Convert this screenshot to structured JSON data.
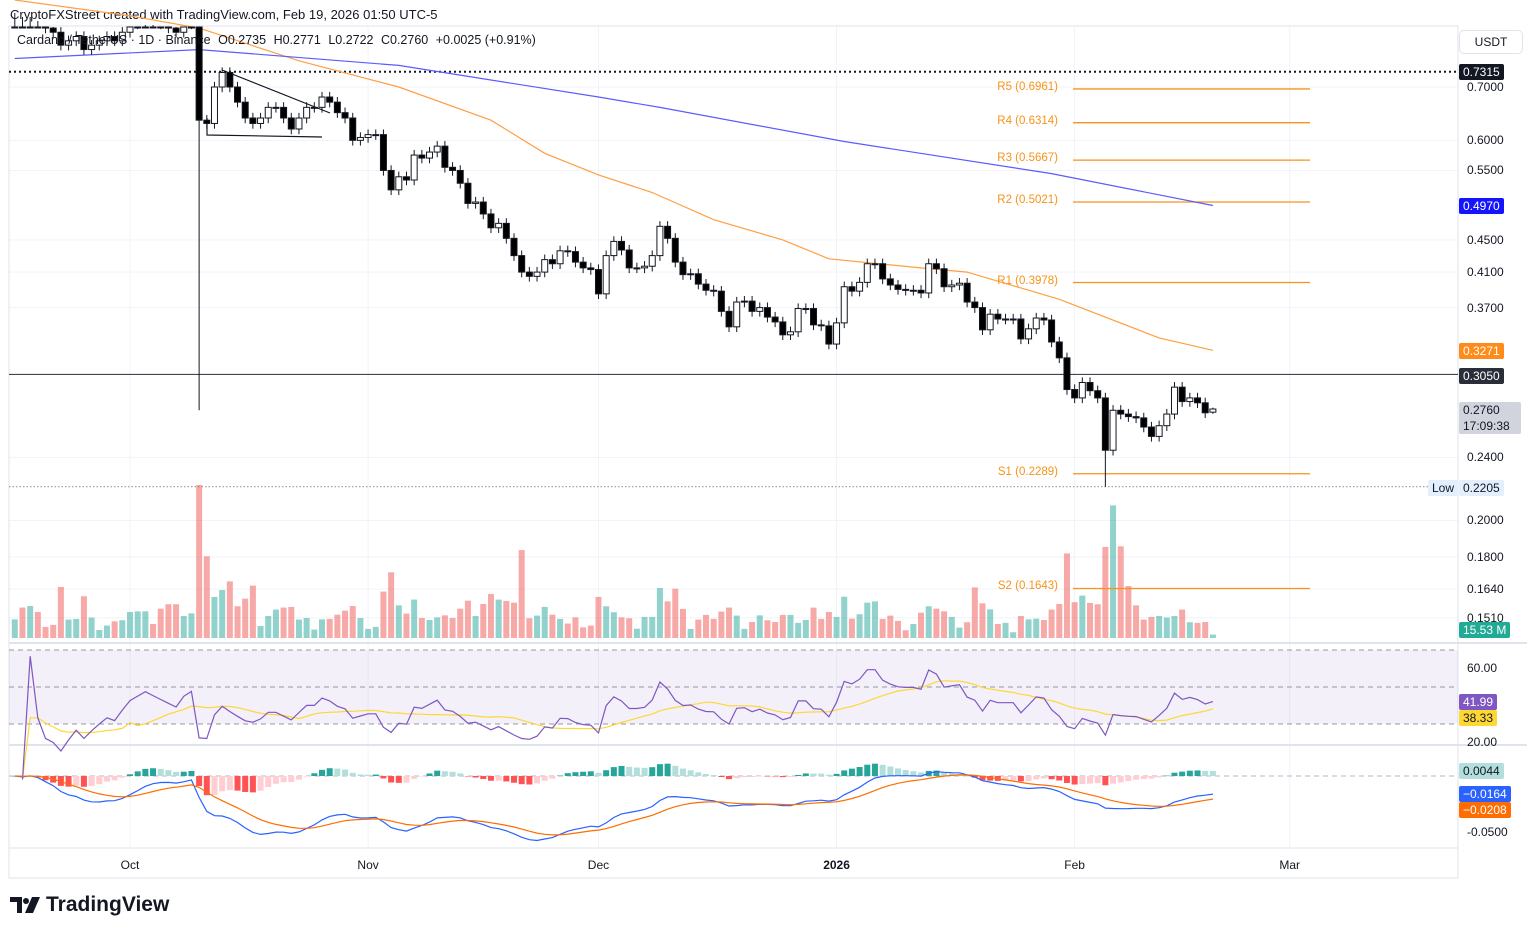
{
  "header": {
    "credit": "CryptoFXStreet created with TradingView.com, Feb 19, 2026 01:50 UTC-5",
    "symbol": "Cardano / TetherUS · 1D · Binance",
    "open": "O0.2735",
    "high": "H0.2771",
    "low": "L0.2722",
    "close": "C0.2760",
    "change": "+0.0025 (+0.91%)"
  },
  "currency_button": "USDT",
  "logo_text": "TradingView",
  "colors": {
    "up_body": "#ffffff",
    "down_body": "#000000",
    "vol_up": "#26a69a",
    "vol_down": "#ef5350",
    "ma_fast": "#ff9f43",
    "ma_slow": "#5b5bff",
    "pivot": "#f7931a",
    "rsi": "#7e57c2",
    "rsi_ma": "#fdd835",
    "macd": "#2962ff",
    "signal": "#ff6d00"
  },
  "chart_data": {
    "type": "candlestick",
    "scale": "log",
    "start_date": "2025-09-16",
    "end_date": "2026-02-19",
    "ylim": [
      0.15,
      0.88
    ],
    "y_ticks": [
      "0.7000",
      "0.6000",
      "0.5500",
      "0.4500",
      "0.4100",
      "0.3700",
      "0.2400",
      "0.2000",
      "0.1800",
      "0.1640",
      "0.1510"
    ],
    "x_ticks": [
      {
        "label": "Oct",
        "date": "2025-10-01"
      },
      {
        "label": "Nov",
        "date": "2025-11-01"
      },
      {
        "label": "Dec",
        "date": "2025-12-01"
      },
      {
        "label": "2026",
        "date": "2026-01-01",
        "bold": true
      },
      {
        "label": "Feb",
        "date": "2026-02-01"
      },
      {
        "label": "Mar",
        "date": "2026-03-01"
      }
    ],
    "first_open": 0.88,
    "closes": [
      0.88,
      0.87,
      0.89,
      0.86,
      0.83,
      0.82,
      0.79,
      0.8,
      0.81,
      0.78,
      0.79,
      0.8,
      0.81,
      0.8,
      0.82,
      0.84,
      0.85,
      0.86,
      0.85,
      0.84,
      0.83,
      0.82,
      0.84,
      0.85,
      0.636,
      0.63,
      0.7,
      0.73,
      0.7,
      0.67,
      0.64,
      0.63,
      0.64,
      0.66,
      0.66,
      0.64,
      0.62,
      0.64,
      0.66,
      0.66,
      0.68,
      0.67,
      0.65,
      0.64,
      0.6,
      0.605,
      0.61,
      0.61,
      0.55,
      0.52,
      0.54,
      0.535,
      0.575,
      0.57,
      0.58,
      0.59,
      0.555,
      0.55,
      0.53,
      0.5,
      0.502,
      0.485,
      0.466,
      0.472,
      0.452,
      0.43,
      0.41,
      0.405,
      0.41,
      0.425,
      0.42,
      0.436,
      0.435,
      0.422,
      0.415,
      0.413,
      0.385,
      0.43,
      0.448,
      0.437,
      0.415,
      0.415,
      0.417,
      0.43,
      0.468,
      0.452,
      0.422,
      0.407,
      0.408,
      0.396,
      0.389,
      0.388,
      0.366,
      0.35,
      0.376,
      0.377,
      0.366,
      0.37,
      0.36,
      0.355,
      0.342,
      0.345,
      0.369,
      0.369,
      0.352,
      0.351,
      0.333,
      0.354,
      0.393,
      0.388,
      0.398,
      0.42,
      0.42,
      0.402,
      0.395,
      0.39,
      0.389,
      0.389,
      0.386,
      0.42,
      0.414,
      0.393,
      0.395,
      0.397,
      0.376,
      0.37,
      0.347,
      0.363,
      0.358,
      0.358,
      0.358,
      0.338,
      0.348,
      0.359,
      0.357,
      0.335,
      0.32,
      0.292,
      0.285,
      0.298,
      0.291,
      0.285,
      0.245,
      0.275,
      0.272,
      0.27,
      0.269,
      0.262,
      0.255,
      0.263,
      0.272,
      0.294,
      0.282,
      0.285,
      0.281,
      0.273,
      0.276
    ],
    "ohlc_overrides": [
      {
        "index": 24,
        "high": 0.87,
        "low": 0.275
      },
      {
        "index": 142,
        "low": 0.2205
      },
      {
        "index": 156,
        "open": 0.2735,
        "high": 0.2771,
        "low": 0.2722,
        "close": 0.276
      }
    ],
    "volume_millions": [
      84,
      137,
      144,
      117,
      50,
      59,
      230,
      83,
      86,
      188,
      92,
      36,
      56,
      75,
      80,
      117,
      120,
      120,
      63,
      132,
      152,
      152,
      99,
      111,
      689,
      368,
      185,
      216,
      255,
      143,
      177,
      236,
      54,
      99,
      128,
      137,
      140,
      83,
      90,
      38,
      84,
      86,
      105,
      123,
      144,
      90,
      41,
      50,
      209,
      296,
      147,
      110,
      173,
      90,
      81,
      93,
      102,
      90,
      132,
      168,
      99,
      153,
      198,
      173,
      167,
      159,
      396,
      89,
      101,
      140,
      105,
      86,
      65,
      93,
      48,
      56,
      185,
      143,
      116,
      93,
      89,
      42,
      95,
      95,
      225,
      165,
      222,
      131,
      41,
      83,
      104,
      86,
      119,
      137,
      101,
      41,
      72,
      102,
      80,
      72,
      104,
      104,
      68,
      81,
      137,
      86,
      117,
      95,
      186,
      87,
      107,
      159,
      165,
      86,
      101,
      77,
      35,
      63,
      114,
      143,
      132,
      120,
      95,
      47,
      71,
      228,
      156,
      129,
      63,
      68,
      26,
      99,
      84,
      87,
      81,
      128,
      153,
      381,
      161,
      191,
      158,
      152,
      410,
      597,
      413,
      234,
      147,
      83,
      95,
      99,
      92,
      99,
      128,
      71,
      68,
      72,
      15.53
    ],
    "ma_fast": [
      [
        0,
        0.9
      ],
      [
        15,
        0.86
      ],
      [
        24,
        0.83
      ],
      [
        37,
        0.755
      ],
      [
        50,
        0.7
      ],
      [
        62,
        0.636
      ],
      [
        69,
        0.578
      ],
      [
        76,
        0.543
      ],
      [
        83,
        0.516
      ],
      [
        91,
        0.477
      ],
      [
        100,
        0.45
      ],
      [
        106,
        0.426
      ],
      [
        118,
        0.415
      ],
      [
        124,
        0.41
      ],
      [
        136,
        0.379
      ],
      [
        149,
        0.339
      ],
      [
        156,
        0.327
      ]
    ],
    "ma_slow": [
      [
        0,
        0.76
      ],
      [
        24,
        0.78
      ],
      [
        50,
        0.745
      ],
      [
        76,
        0.68
      ],
      [
        84,
        0.66
      ],
      [
        108,
        0.598
      ],
      [
        135,
        0.545
      ],
      [
        156,
        0.497
      ]
    ],
    "pivots": [
      {
        "label": "R5 (0.6961)",
        "value": 0.6961
      },
      {
        "label": "R4 (0.6314)",
        "value": 0.6314
      },
      {
        "label": "R3 (0.5667)",
        "value": 0.5667
      },
      {
        "label": "R2 (0.5021)",
        "value": 0.5021
      },
      {
        "label": "R1 (0.3978)",
        "value": 0.3978
      },
      {
        "label": "S1 (0.2289)",
        "value": 0.2289
      },
      {
        "label": "S2 (0.1643)",
        "value": 0.1643
      }
    ],
    "horizontal_levels": [
      {
        "value": 0.7315,
        "style": "dotted",
        "label": "0.7315"
      },
      {
        "value": 0.305,
        "style": "solid",
        "label": "0.3050"
      },
      {
        "value": 0.2205,
        "style": "dotted-gray",
        "label": "0.2205",
        "prefix": "Low"
      }
    ],
    "price_tags": {
      "ma_slow": "0.4970",
      "ma_fast": "0.3271",
      "last": "0.2760",
      "countdown": "17:09:38",
      "volume": "15.53 M"
    },
    "rsi": {
      "period": 14,
      "ma_period": 14,
      "upper": 70,
      "middle": 50,
      "lower": 30,
      "ticks": [
        "60.00",
        "20.00"
      ],
      "value": "41.99",
      "ma_value": "38.33"
    },
    "macd": {
      "fast": 12,
      "slow": 26,
      "signal": 9,
      "ticks": [
        "-0.0500"
      ],
      "hist_value": "0.0044",
      "macd_value": "−0.0164",
      "signal_value": "−0.0208"
    }
  }
}
